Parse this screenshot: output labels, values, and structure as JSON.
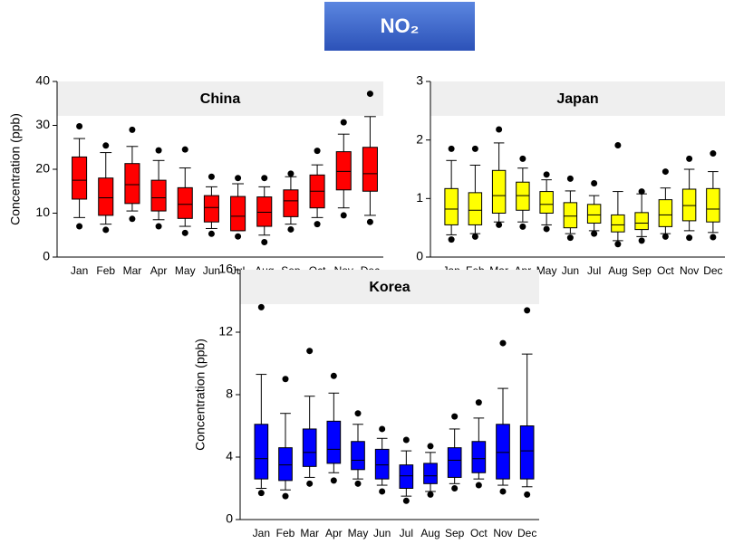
{
  "title": "NO₂",
  "chart_data": [
    {
      "type": "box",
      "title": "China",
      "y_label": "Concentration (ppb)",
      "color": "#ff0000",
      "categories": [
        "Jan",
        "Feb",
        "Mar",
        "Apr",
        "May",
        "Jun",
        "Jul",
        "Aug",
        "Sep",
        "Oct",
        "Nov",
        "Dec"
      ],
      "outlier_low": [
        7,
        6.2,
        8.7,
        7,
        5.5,
        5.3,
        4.7,
        3.4,
        6.3,
        7.5,
        9.5,
        8
      ],
      "whisker_low": [
        9,
        7.5,
        10.5,
        8.5,
        7,
        6.5,
        6,
        5,
        7.5,
        9,
        11.2,
        9.5
      ],
      "q1": [
        13.2,
        9.5,
        12.2,
        10.5,
        8.8,
        8,
        6,
        7,
        9.2,
        11.2,
        15.3,
        15
      ],
      "median": [
        17.5,
        13.5,
        16.5,
        13.5,
        12,
        11.3,
        9.3,
        10.2,
        12.8,
        15,
        19.5,
        19
      ],
      "q3": [
        22.8,
        18,
        21.3,
        17.5,
        15.8,
        14,
        13.8,
        13.7,
        15.3,
        18.7,
        24,
        25
      ],
      "whisker_high": [
        27,
        23.8,
        25.2,
        22,
        20.3,
        16,
        16.7,
        16,
        18.3,
        21,
        28,
        32
      ],
      "outlier_high": [
        29.8,
        25.4,
        29,
        24.3,
        24.5,
        18.3,
        18,
        18,
        19,
        24.2,
        30.7,
        37.2
      ],
      "ylim": [
        0,
        40
      ],
      "yticks": [
        0,
        10,
        20,
        30,
        40
      ]
    },
    {
      "type": "box",
      "title": "Japan",
      "color": "#ffff00",
      "categories": [
        "Jan",
        "Feb",
        "Mar",
        "Apr",
        "May",
        "Jun",
        "Jul",
        "Aug",
        "Sep",
        "Oct",
        "Nov",
        "Dec"
      ],
      "outlier_low": [
        0.3,
        0.35,
        0.55,
        0.52,
        0.48,
        0.33,
        0.4,
        0.22,
        0.28,
        0.35,
        0.33,
        0.34
      ],
      "whisker_low": [
        0.38,
        0.4,
        0.6,
        0.6,
        0.55,
        0.4,
        0.45,
        0.28,
        0.35,
        0.4,
        0.45,
        0.42
      ],
      "q1": [
        0.55,
        0.55,
        0.75,
        0.8,
        0.75,
        0.5,
        0.58,
        0.43,
        0.47,
        0.52,
        0.62,
        0.6
      ],
      "median": [
        0.82,
        0.8,
        1.05,
        1.05,
        0.9,
        0.7,
        0.72,
        0.55,
        0.58,
        0.72,
        0.88,
        0.82
      ],
      "q3": [
        1.17,
        1.1,
        1.48,
        1.28,
        1.12,
        0.93,
        0.9,
        0.72,
        0.76,
        0.98,
        1.16,
        1.17
      ],
      "whisker_high": [
        1.65,
        1.57,
        1.95,
        1.52,
        1.32,
        1.13,
        1.05,
        1.12,
        1.08,
        1.18,
        1.5,
        1.46
      ],
      "outlier_high": [
        1.85,
        1.85,
        2.18,
        1.68,
        1.41,
        1.34,
        1.26,
        1.91,
        1.12,
        1.46,
        1.68,
        1.77
      ],
      "ylim": [
        0,
        3
      ],
      "yticks": [
        0,
        1,
        2,
        3
      ]
    },
    {
      "type": "box",
      "title": "Korea",
      "y_label": "Concentration (ppb)",
      "color": "#0000ff",
      "categories": [
        "Jan",
        "Feb",
        "Mar",
        "Apr",
        "May",
        "Jun",
        "Jul",
        "Aug",
        "Sep",
        "Oct",
        "Nov",
        "Dec"
      ],
      "outlier_low": [
        1.7,
        1.5,
        2.3,
        2.5,
        2.3,
        1.8,
        1.2,
        1.6,
        2,
        2.2,
        1.8,
        1.6
      ],
      "whisker_low": [
        2,
        1.9,
        2.7,
        3,
        2.6,
        2.2,
        1.5,
        1.8,
        2.3,
        2.6,
        2.2,
        2.1
      ],
      "q1": [
        2.6,
        2.5,
        3.4,
        3.6,
        3.2,
        2.6,
        2,
        2.3,
        2.7,
        3,
        2.6,
        2.6
      ],
      "median": [
        3.9,
        3.5,
        4.3,
        4.5,
        3.8,
        3.5,
        2.8,
        2.8,
        3.8,
        3.9,
        4.3,
        4.4
      ],
      "q3": [
        6.1,
        4.6,
        5.8,
        6.3,
        5,
        4.5,
        3.5,
        3.6,
        4.6,
        5,
        6.1,
        6
      ],
      "whisker_high": [
        9.3,
        6.8,
        7.9,
        8.1,
        6.1,
        5.2,
        4.4,
        4.3,
        5.8,
        6.5,
        8.4,
        10.6
      ],
      "outlier_high": [
        13.6,
        9,
        10.8,
        9.2,
        6.8,
        5.8,
        5.1,
        4.7,
        6.6,
        7.5,
        11.3,
        13.4
      ],
      "ylim": [
        0,
        16
      ],
      "yticks": [
        0,
        4,
        8,
        12,
        16
      ]
    }
  ]
}
